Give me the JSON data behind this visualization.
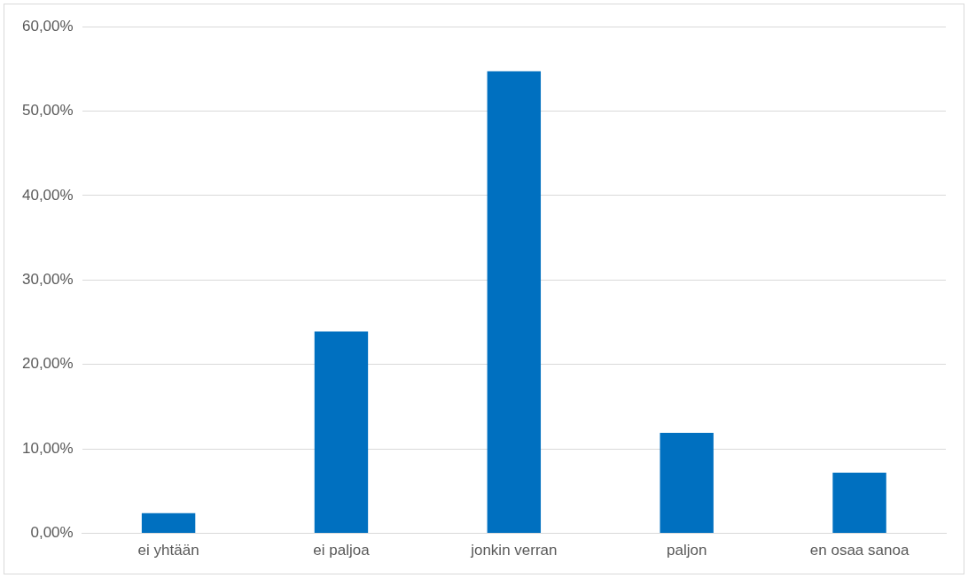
{
  "chart_data": {
    "type": "bar",
    "categories": [
      "ei yhtään",
      "ei paljoa",
      "jonkin verran",
      "paljon",
      "en osaa sanoa"
    ],
    "values": [
      2.4,
      23.9,
      54.7,
      11.9,
      7.2
    ],
    "color": "#0070c0",
    "ylim": [
      0,
      60
    ],
    "yticks": [
      {
        "value": 0,
        "label": "0,00%"
      },
      {
        "value": 10,
        "label": "10,00%"
      },
      {
        "value": 20,
        "label": "20,00%"
      },
      {
        "value": 30,
        "label": "30,00%"
      },
      {
        "value": 40,
        "label": "40,00%"
      },
      {
        "value": 50,
        "label": "50,00%"
      },
      {
        "value": 60,
        "label": "60,00%"
      }
    ],
    "grid": "y",
    "legend": false
  }
}
